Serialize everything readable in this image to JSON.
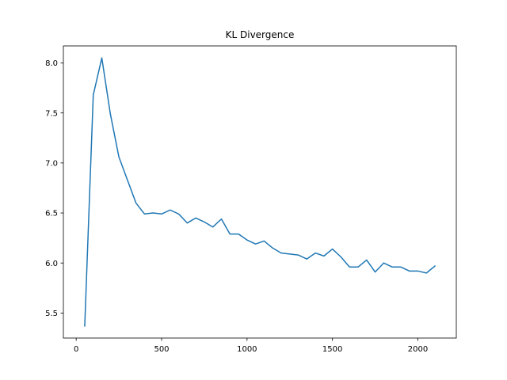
{
  "chart_data": {
    "type": "line",
    "title": "KL Divergence",
    "xlabel": "",
    "ylabel": "",
    "xlim": [
      -75,
      2225
    ],
    "ylim": [
      5.25,
      8.17
    ],
    "grid": false,
    "legend": "none",
    "line_color": "#1f77b4",
    "xticks": [
      0,
      500,
      1000,
      1500,
      2000
    ],
    "yticks": [
      5.5,
      6.0,
      6.5,
      7.0,
      7.5,
      8.0
    ],
    "xtick_labels": [
      "0",
      "500",
      "1000",
      "1500",
      "2000"
    ],
    "ytick_labels": [
      "5.5",
      "6.0",
      "6.5",
      "7.0",
      "7.5",
      "8.0"
    ],
    "series": [
      {
        "x": [
          50,
          100,
          150,
          200,
          250,
          300,
          350,
          400,
          450,
          500,
          550,
          600,
          650,
          700,
          750,
          800,
          850,
          900,
          950,
          1000,
          1050,
          1100,
          1150,
          1200,
          1250,
          1300,
          1350,
          1400,
          1450,
          1500,
          1550,
          1600,
          1650,
          1700,
          1750,
          1800,
          1850,
          1900,
          1950,
          2000,
          2050,
          2100
        ],
        "values": [
          5.37,
          7.68,
          8.05,
          7.49,
          7.06,
          6.83,
          6.6,
          6.49,
          6.5,
          6.49,
          6.53,
          6.49,
          6.4,
          6.45,
          6.41,
          6.36,
          6.44,
          6.29,
          6.29,
          6.23,
          6.19,
          6.22,
          6.15,
          6.1,
          6.09,
          6.08,
          6.04,
          6.1,
          6.07,
          6.14,
          6.06,
          5.96,
          5.96,
          6.03,
          5.91,
          6.0,
          5.96,
          5.96,
          5.92,
          5.92,
          5.9,
          5.97
        ]
      }
    ]
  }
}
